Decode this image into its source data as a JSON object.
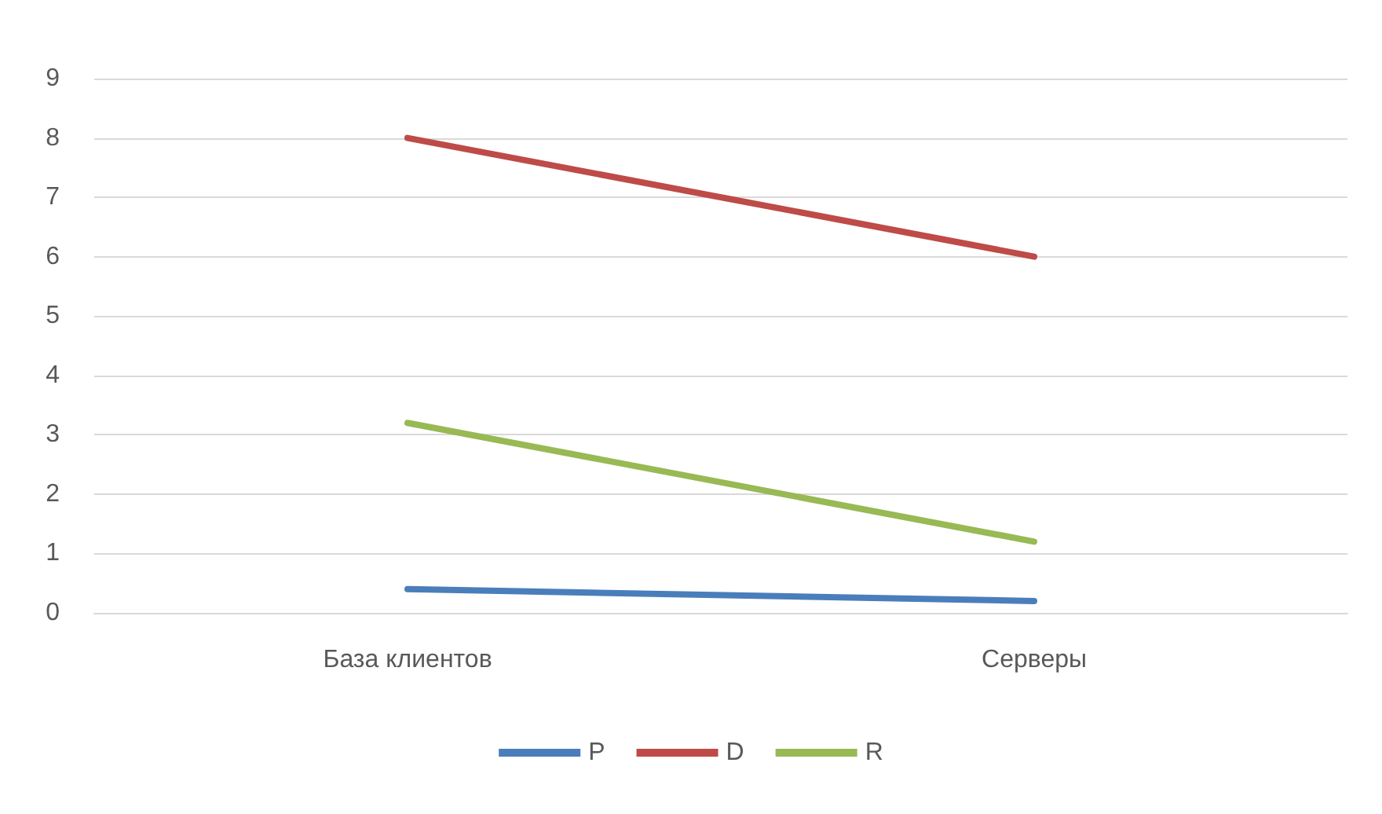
{
  "chart_data": {
    "type": "line",
    "categories": [
      "База клиентов",
      "Серверы"
    ],
    "series": [
      {
        "name": "P",
        "color": "#4a7ebb",
        "values": [
          0.4,
          0.2
        ]
      },
      {
        "name": "D",
        "color": "#be4b48",
        "values": [
          8,
          6
        ]
      },
      {
        "name": "R",
        "color": "#98b954",
        "values": [
          3.2,
          1.2
        ]
      }
    ],
    "ylim": [
      0,
      9
    ],
    "yticks": [
      0,
      1,
      2,
      3,
      4,
      5,
      6,
      7,
      8,
      9
    ],
    "grid": "y",
    "legend": "bottom",
    "marker": "none",
    "line_style": "solid"
  }
}
